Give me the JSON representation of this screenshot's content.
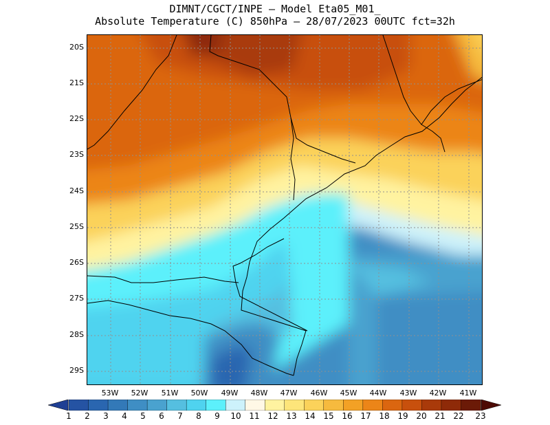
{
  "title": {
    "line1": "DIMNT/CGCT/INPE –  Model Eta05_M01_",
    "line2": "Absolute Temperature (C) 850hPa –  28/07/2023 00UTC fct=32h"
  },
  "lat_labels": [
    "20S",
    "21S",
    "22S",
    "23S",
    "24S",
    "25S",
    "26S",
    "27S",
    "28S",
    "29S"
  ],
  "lon_labels": [
    "53W",
    "52W",
    "51W",
    "50W",
    "49W",
    "48W",
    "47W",
    "46W",
    "45W",
    "44W",
    "43W",
    "42W",
    "41W"
  ],
  "colorbar": {
    "labels": [
      "1",
      "2",
      "3",
      "4",
      "5",
      "6",
      "7",
      "8",
      "9",
      "10",
      "11",
      "12",
      "13",
      "14",
      "15",
      "16",
      "17",
      "18",
      "19",
      "20",
      "21",
      "22",
      "23"
    ],
    "colors": [
      "#1f3f94",
      "#2553a3",
      "#2a66b0",
      "#3379b8",
      "#3f8ec4",
      "#4aa2cf",
      "#55bfe0",
      "#4fd3ef",
      "#5cf0fb",
      "#cdf2fb",
      "#fff8e6",
      "#fff3a0",
      "#fde57a",
      "#fbd25a",
      "#f6ba3e",
      "#f3a125",
      "#ec8518",
      "#db6610",
      "#c8500d",
      "#a93a0a",
      "#8e2a08",
      "#6b1a07",
      "#4d0a05"
    ]
  },
  "map_data": {
    "lon_range": [
      -53.8,
      -40.5
    ],
    "lat_range": [
      -29.45,
      -19.9
    ]
  }
}
